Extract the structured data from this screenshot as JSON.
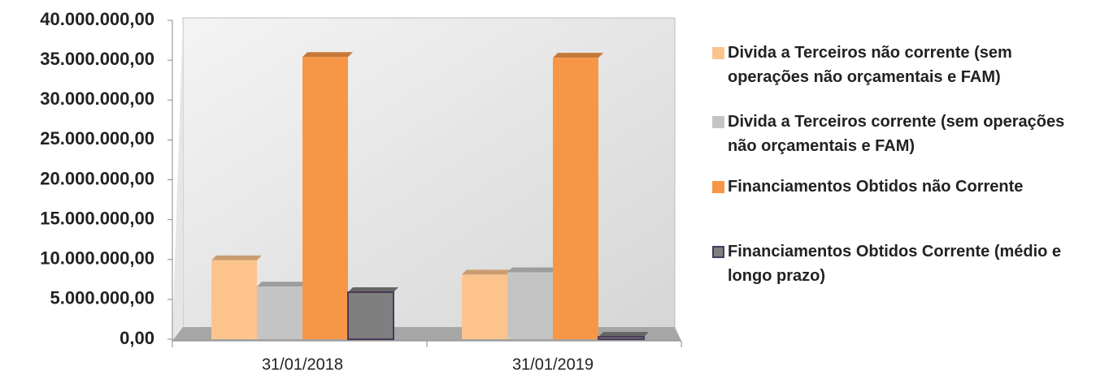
{
  "chart_data": {
    "type": "bar",
    "categories": [
      "31/01/2018",
      "31/01/2019"
    ],
    "series": [
      {
        "name": "Divida a Terceiros não corrente (sem operações não orçamentais e FAM)",
        "color": "#fcc48c",
        "values": [
          9900000,
          8100000
        ]
      },
      {
        "name": "Divida a Terceiros corrente (sem operações não orçamentais e FAM)",
        "color": "#c4c4c4",
        "values": [
          6600000,
          8400000
        ]
      },
      {
        "name": "Financiamentos Obtidos não Corrente",
        "color": "#f79646",
        "values": [
          35400000,
          35300000
        ]
      },
      {
        "name": "Financiamentos Obtidos  Corrente (médio e longo prazo)",
        "color": "#7f7f7f",
        "values": [
          5900000,
          300000
        ]
      }
    ],
    "ylim": [
      0,
      40000000
    ],
    "yticks": [
      {
        "value": 0,
        "label": "0,00"
      },
      {
        "value": 5000000,
        "label": "5.000.000,00"
      },
      {
        "value": 10000000,
        "label": "10.000.000,00"
      },
      {
        "value": 15000000,
        "label": "15.000.000,00"
      },
      {
        "value": 20000000,
        "label": "20.000.000,00"
      },
      {
        "value": 25000000,
        "label": "25.000.000,00"
      },
      {
        "value": 30000000,
        "label": "30.000.000,00"
      },
      {
        "value": 35000000,
        "label": "35.000.000,00"
      },
      {
        "value": 40000000,
        "label": "40.000.000,00"
      }
    ],
    "grid": false,
    "legend": "right"
  }
}
